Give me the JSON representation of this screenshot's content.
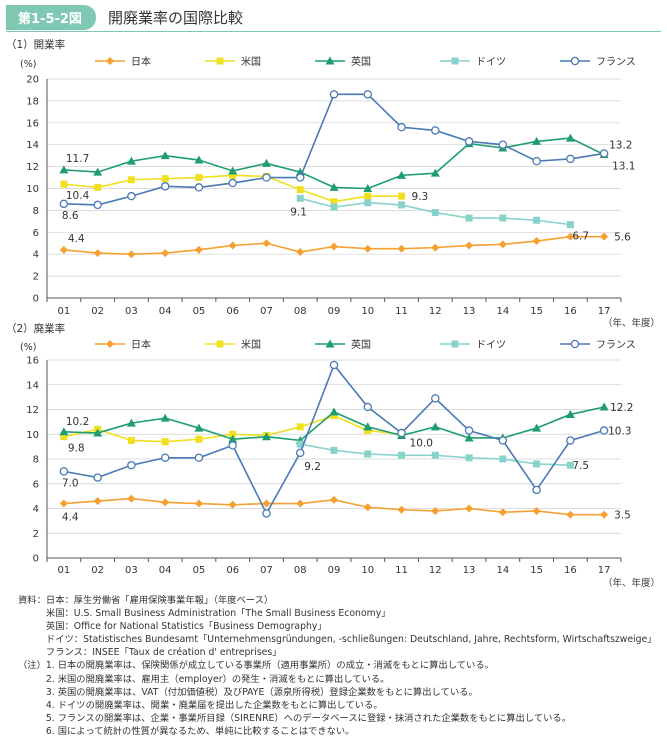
{
  "header": {
    "figure_label": "第1-5-2図",
    "title": "開廃業率の国際比較"
  },
  "chart_data": [
    {
      "type": "line",
      "title": "（1）開業率",
      "yunit": "(%)",
      "xunit": "（年、年度）",
      "categories": [
        "01",
        "02",
        "03",
        "04",
        "05",
        "06",
        "07",
        "08",
        "09",
        "10",
        "11",
        "12",
        "13",
        "14",
        "15",
        "16",
        "17"
      ],
      "ylim": [
        0,
        20
      ],
      "yticks": [
        0,
        2,
        4,
        6,
        8,
        10,
        12,
        14,
        16,
        18,
        20
      ],
      "series": [
        {
          "name": "日本",
          "color": "#f5a030",
          "marker": "diamond",
          "values": [
            4.4,
            4.1,
            4.0,
            4.1,
            4.4,
            4.8,
            5.0,
            4.2,
            4.7,
            4.5,
            4.5,
            4.6,
            4.8,
            4.9,
            5.2,
            5.6,
            5.6
          ]
        },
        {
          "name": "米国",
          "color": "#f0e020",
          "marker": "square",
          "values": [
            10.4,
            10.1,
            10.8,
            10.9,
            11.0,
            11.2,
            11.1,
            9.9,
            8.8,
            9.3,
            9.3,
            null,
            null,
            null,
            null,
            null,
            null
          ]
        },
        {
          "name": "英国",
          "color": "#1e9e70",
          "marker": "triangle",
          "values": [
            11.7,
            11.5,
            12.5,
            13.0,
            12.6,
            11.6,
            12.3,
            11.5,
            10.1,
            10.0,
            11.2,
            11.4,
            14.1,
            13.7,
            14.3,
            14.6,
            13.1
          ]
        },
        {
          "name": "ドイツ",
          "color": "#88d2cc",
          "marker": "square",
          "values": [
            null,
            null,
            null,
            null,
            null,
            null,
            null,
            9.1,
            8.3,
            8.7,
            8.5,
            7.8,
            7.3,
            7.3,
            7.1,
            6.7,
            null
          ]
        },
        {
          "name": "フランス",
          "color": "#4a7ab5",
          "marker": "circle",
          "values": [
            8.6,
            8.5,
            9.3,
            10.2,
            10.1,
            10.5,
            11.0,
            11.0,
            18.6,
            18.6,
            15.6,
            15.3,
            14.3,
            14.0,
            12.5,
            12.7,
            13.2
          ]
        }
      ],
      "annotations": [
        "11.7",
        "10.4",
        "8.6",
        "4.4",
        "9.1",
        "9.3",
        "6.7",
        "13.2",
        "13.1",
        "5.6"
      ]
    },
    {
      "type": "line",
      "title": "（2）廃業率",
      "yunit": "(%)",
      "xunit": "（年、年度）",
      "categories": [
        "01",
        "02",
        "03",
        "04",
        "05",
        "06",
        "07",
        "08",
        "09",
        "10",
        "11",
        "12",
        "13",
        "14",
        "15",
        "16",
        "17"
      ],
      "ylim": [
        0,
        16
      ],
      "yticks": [
        0,
        2,
        4,
        6,
        8,
        10,
        12,
        14,
        16
      ],
      "series": [
        {
          "name": "日本",
          "color": "#f5a030",
          "marker": "diamond",
          "values": [
            4.4,
            4.6,
            4.8,
            4.5,
            4.4,
            4.3,
            4.4,
            4.4,
            4.7,
            4.1,
            3.9,
            3.8,
            4.0,
            3.7,
            3.8,
            3.5,
            3.5
          ]
        },
        {
          "name": "米国",
          "color": "#f0e020",
          "marker": "square",
          "values": [
            9.8,
            10.4,
            9.5,
            9.4,
            9.6,
            10.0,
            9.9,
            10.6,
            11.5,
            10.3,
            10.0,
            null,
            null,
            null,
            null,
            null,
            null
          ]
        },
        {
          "name": "英国",
          "color": "#1e9e70",
          "marker": "triangle",
          "values": [
            10.2,
            10.1,
            10.9,
            11.3,
            10.5,
            9.6,
            9.8,
            9.5,
            11.8,
            10.6,
            9.9,
            10.6,
            9.7,
            9.7,
            10.5,
            11.6,
            12.2
          ]
        },
        {
          "name": "ドイツ",
          "color": "#88d2cc",
          "marker": "square",
          "values": [
            null,
            null,
            null,
            null,
            null,
            null,
            null,
            9.2,
            8.7,
            8.4,
            8.3,
            8.3,
            8.1,
            8.0,
            7.6,
            7.5,
            null
          ]
        },
        {
          "name": "フランス",
          "color": "#4a7ab5",
          "marker": "circle",
          "values": [
            7.0,
            6.5,
            7.5,
            8.1,
            8.1,
            9.1,
            3.6,
            8.5,
            15.6,
            12.2,
            10.1,
            12.9,
            10.3,
            9.5,
            5.5,
            9.5,
            10.3
          ]
        }
      ],
      "annotations": [
        "10.2",
        "9.8",
        "7.0",
        "4.4",
        "9.2",
        "10.0",
        "7.5",
        "12.2",
        "10.3",
        "3.5"
      ]
    }
  ],
  "notes": [
    "資料：日本：厚生労働省「雇用保険事業年報」（年度ベース）",
    "　　　米国：U.S. Small Business Administration「The Small Business Economy」",
    "　　　英国：Office for National Statistics「Business Demography」",
    "　　　ドイツ：Statistisches Bundesamt「Unternehmensgründungen, -schließungen: Deutschland, Jahre, Rechtsform, Wirtschaftszweige」",
    "　　　フランス：INSEE「Taux de création d' entreprises」",
    "（注）1. 日本の開廃業率は、保険関係が成立している事業所（適用事業所）の成立・消滅をもとに算出している。",
    "　　　2. 米国の開廃業率は、雇用主（employer）の発生・消滅をもとに算出している。",
    "　　　3. 英国の開廃業率は、VAT（付加価値税）及びPAYE（源泉所得税）登録企業数をもとに算出している。",
    "　　　4. ドイツの開廃業率は、開業・廃業届を提出した企業数をもとに算出している。",
    "　　　5. フランスの開業率は、企業・事業所目録（SIRENRE）へのデータベースに登録・抹消された企業数をもとに算出している。",
    "　　　6. 国によって統計の性質が異なるため、単純に比較することはできない。"
  ]
}
